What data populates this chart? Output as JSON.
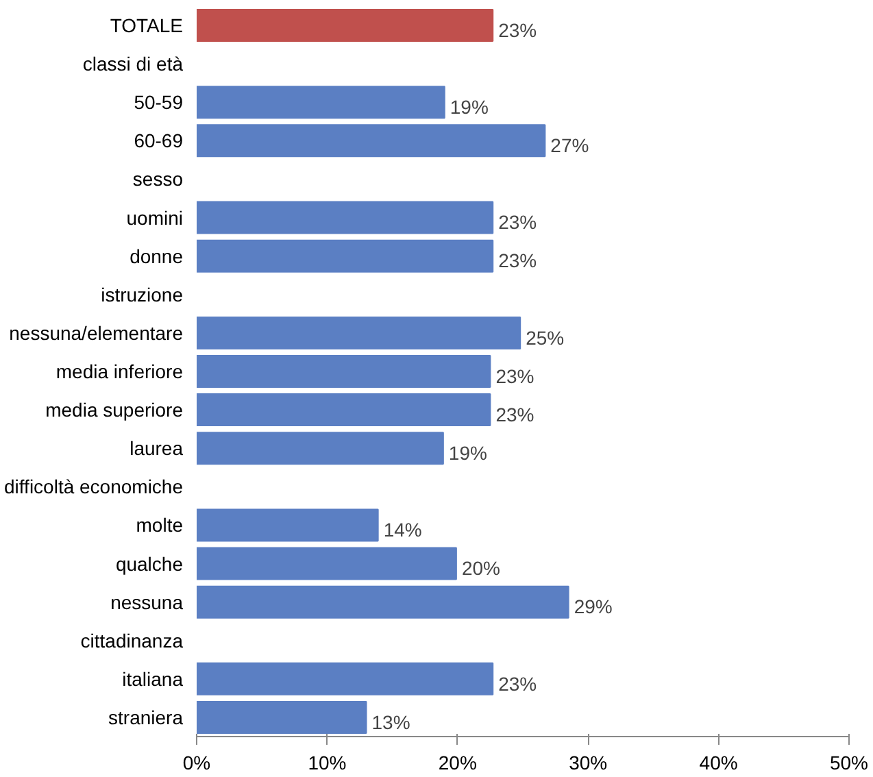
{
  "chart_data": {
    "type": "bar",
    "orientation": "horizontal",
    "categories": [
      "TOTALE",
      "classi di età",
      "50-59",
      "60-69",
      "sesso",
      "uomini",
      "donne",
      "istruzione",
      "nessuna/elementare",
      "media inferiore",
      "media superiore",
      "laurea",
      "difficoltà economiche",
      "molte",
      "qualche",
      "nessuna",
      "cittadinanza",
      "italiana",
      "straniera"
    ],
    "values": [
      22.7,
      null,
      19.0,
      26.7,
      null,
      22.7,
      22.7,
      null,
      24.8,
      22.5,
      22.5,
      18.9,
      null,
      13.9,
      19.9,
      28.5,
      null,
      22.7,
      13.0
    ],
    "colors": [
      "#c0504d",
      null,
      "#5b7fc3",
      "#5b7fc3",
      null,
      "#5b7fc3",
      "#5b7fc3",
      null,
      "#5b7fc3",
      "#5b7fc3",
      "#5b7fc3",
      "#5b7fc3",
      null,
      "#5b7fc3",
      "#5b7fc3",
      "#5b7fc3",
      null,
      "#5b7fc3",
      "#5b7fc3"
    ],
    "value_labels": [
      "23%",
      null,
      "19%",
      "27%",
      null,
      "23%",
      "23%",
      null,
      "25%",
      "23%",
      "23%",
      "19%",
      null,
      "14%",
      "20%",
      "29%",
      null,
      "23%",
      "13%"
    ],
    "xlim": [
      0,
      50
    ],
    "xticks": [
      {
        "value": 0,
        "label": "0%"
      },
      {
        "value": 10,
        "label": "10%"
      },
      {
        "value": 20,
        "label": "20%"
      },
      {
        "value": 30,
        "label": "30%"
      },
      {
        "value": 40,
        "label": "40%"
      },
      {
        "value": 50,
        "label": "50%"
      }
    ],
    "grid": false
  }
}
